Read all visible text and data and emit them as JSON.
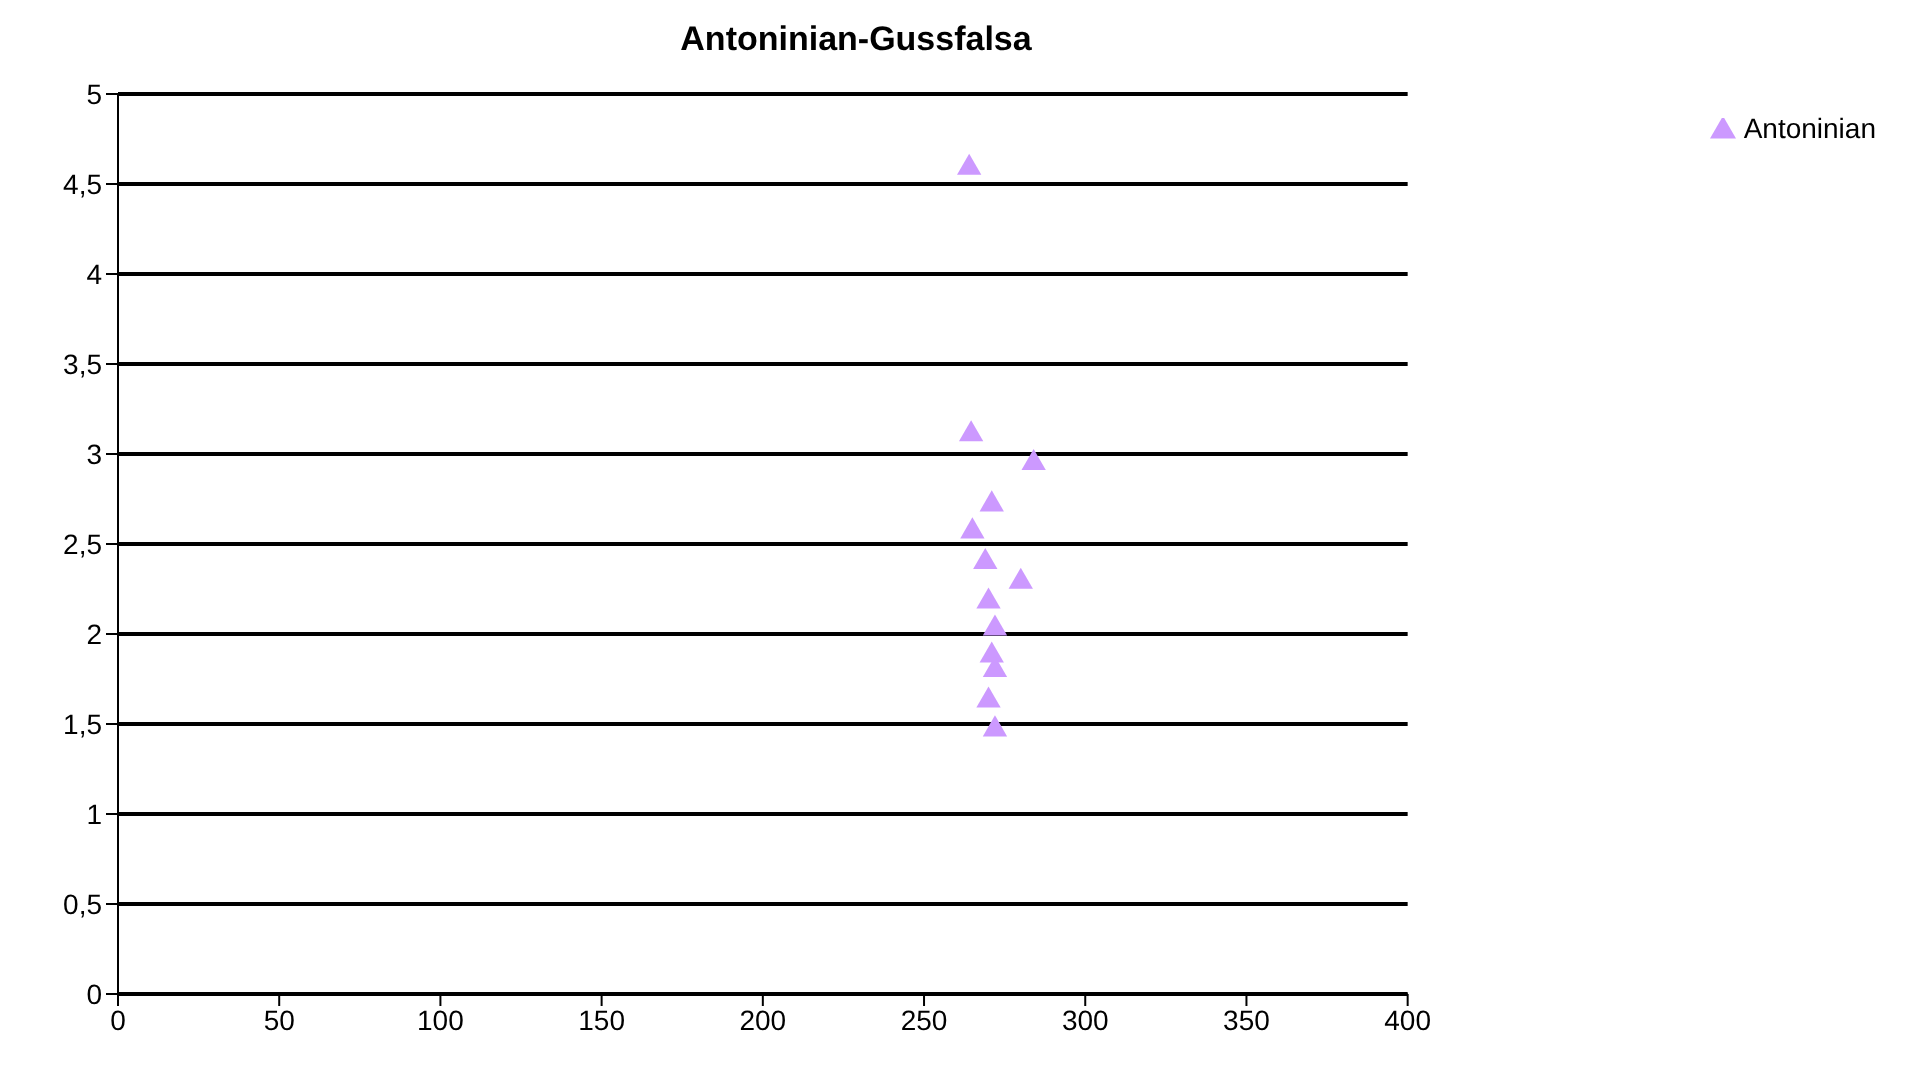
{
  "chart_data": {
    "type": "scatter",
    "title": "Antoninian-Gussfalsa",
    "series": [
      {
        "name": "Antoninian",
        "color": "#cc99ff",
        "x": [
          264,
          264.6,
          284,
          271,
          265,
          269,
          280,
          270,
          272,
          271,
          272,
          270,
          272
        ],
        "values": [
          4.59,
          3.11,
          2.95,
          2.72,
          2.57,
          2.4,
          2.29,
          2.18,
          2.03,
          1.88,
          1.8,
          1.63,
          1.47
        ]
      }
    ],
    "xlim": [
      0,
      400
    ],
    "xticks": [
      0,
      50,
      100,
      150,
      200,
      250,
      300,
      350,
      400
    ],
    "ylim": [
      0,
      5
    ],
    "yticks": [
      {
        "value": 0,
        "label": "0"
      },
      {
        "value": 0.5,
        "label": "0,5"
      },
      {
        "value": 1,
        "label": "1"
      },
      {
        "value": 1.5,
        "label": "1,5"
      },
      {
        "value": 2,
        "label": "2"
      },
      {
        "value": 2.5,
        "label": "2,5"
      },
      {
        "value": 3,
        "label": "3"
      },
      {
        "value": 3.5,
        "label": "3,5"
      },
      {
        "value": 4,
        "label": "4"
      },
      {
        "value": 4.5,
        "label": "4,5"
      },
      {
        "value": 5,
        "label": "5"
      }
    ],
    "grid": "y",
    "legend": "top right",
    "marker": "triangle"
  }
}
